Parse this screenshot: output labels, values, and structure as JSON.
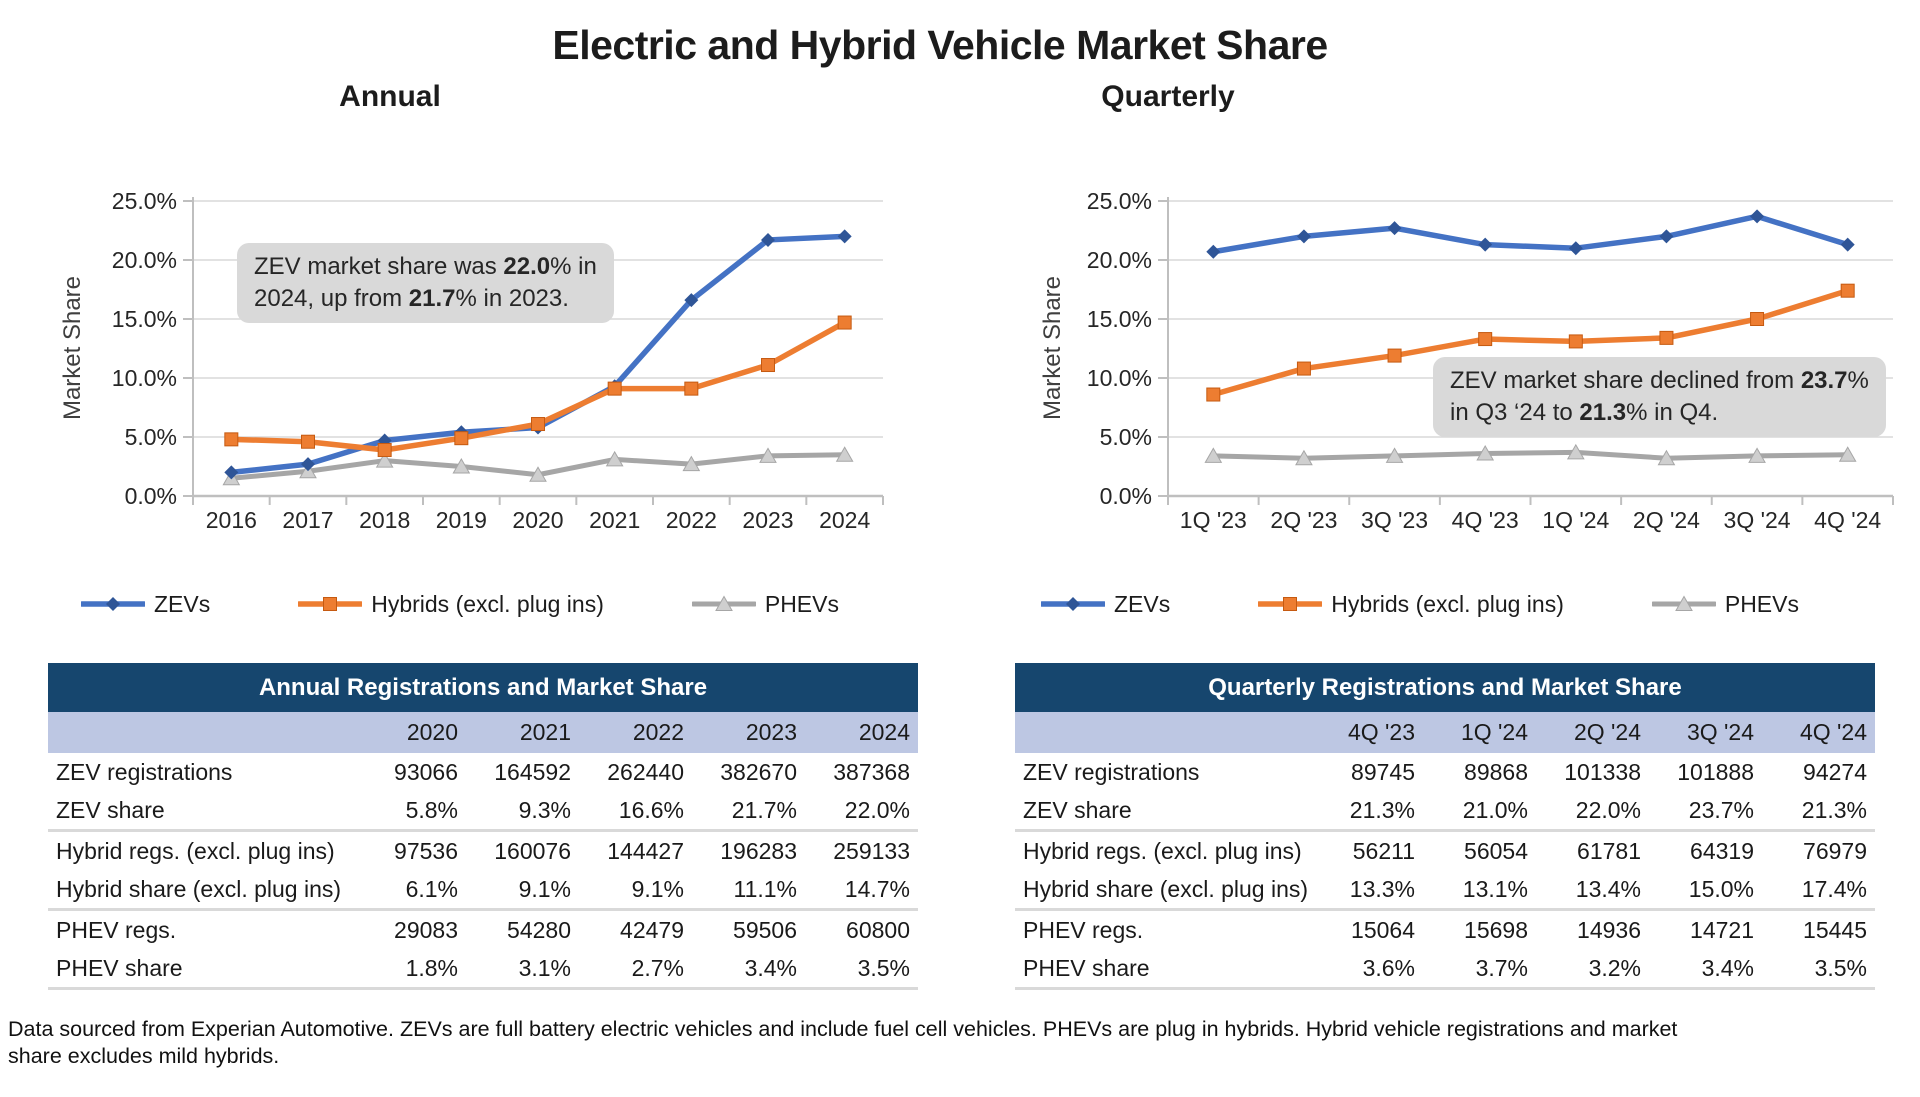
{
  "title": "Electric and Hybrid Vehicle Market Share",
  "colors": {
    "zev_line": "#4472C4",
    "zev_marker": "#2F5597",
    "hybrid_line": "#ED7D31",
    "hybrid_marker": "#ED7D31",
    "hybrid_marker_border": "#C55A11",
    "phev_line": "#A6A6A6",
    "phev_marker": "#CFCFCF",
    "phev_marker_border": "#A6A6A6",
    "gridline": "#D9D9D9",
    "axis": "#BFBFBF",
    "table_header_bg": "#16466E",
    "table_subheader_bg": "#BDC7E3",
    "annotation_bg": "#D9D9D9"
  },
  "chart_data": [
    {
      "type": "line",
      "heading": "Annual",
      "ylabel": "Market Share",
      "ylim": [
        0,
        25
      ],
      "ytick_labels": [
        "0.0%",
        "5.0%",
        "10.0%",
        "15.0%",
        "20.0%",
        "25.0%"
      ],
      "grid": true,
      "legend_position": "bottom",
      "categories": [
        "2016",
        "2017",
        "2018",
        "2019",
        "2020",
        "2021",
        "2022",
        "2023",
        "2024"
      ],
      "series": [
        {
          "name": "ZEVs",
          "values": [
            2.0,
            2.7,
            4.7,
            5.4,
            5.8,
            9.3,
            16.6,
            21.7,
            22.0
          ]
        },
        {
          "name": "Hybrids (excl. plug ins)",
          "values": [
            4.8,
            4.6,
            3.9,
            4.9,
            6.1,
            9.1,
            9.1,
            11.1,
            14.7
          ]
        },
        {
          "name": "PHEVs",
          "values": [
            1.5,
            2.1,
            3.0,
            2.5,
            1.8,
            3.1,
            2.7,
            3.4,
            3.5
          ]
        }
      ],
      "annotation": {
        "lines": [
          [
            {
              "t": "ZEV market share was "
            },
            {
              "t": "22.0",
              "b": true
            },
            {
              "t": "% in"
            }
          ],
          [
            {
              "t": "2024, up from "
            },
            {
              "t": "21.7",
              "b": true
            },
            {
              "t": "% in 2023."
            }
          ]
        ]
      }
    },
    {
      "type": "line",
      "heading": "Quarterly",
      "ylabel": "Market Share",
      "ylim": [
        0,
        25
      ],
      "ytick_labels": [
        "0.0%",
        "5.0%",
        "10.0%",
        "15.0%",
        "20.0%",
        "25.0%"
      ],
      "grid": true,
      "legend_position": "bottom",
      "categories": [
        "1Q '23",
        "2Q '23",
        "3Q '23",
        "4Q '23",
        "1Q '24",
        "2Q '24",
        "3Q '24",
        "4Q '24"
      ],
      "series": [
        {
          "name": "ZEVs",
          "values": [
            20.7,
            22.0,
            22.7,
            21.3,
            21.0,
            22.0,
            23.7,
            21.3
          ]
        },
        {
          "name": "Hybrids (excl. plug ins)",
          "values": [
            8.6,
            10.8,
            11.9,
            13.3,
            13.1,
            13.4,
            15.0,
            17.4
          ]
        },
        {
          "name": "PHEVs",
          "values": [
            3.4,
            3.2,
            3.4,
            3.6,
            3.7,
            3.2,
            3.4,
            3.5
          ]
        }
      ],
      "annotation": {
        "lines": [
          [
            {
              "t": "ZEV market share declined from "
            },
            {
              "t": "23.7",
              "b": true
            },
            {
              "t": "%"
            }
          ],
          [
            {
              "t": "in Q3 ‘24 to "
            },
            {
              "t": "21.3",
              "b": true
            },
            {
              "t": "% in Q4."
            }
          ]
        ]
      }
    }
  ],
  "tables": [
    {
      "title": "Annual Registrations and Market Share",
      "columns": [
        "",
        "2020",
        "2021",
        "2022",
        "2023",
        "2024"
      ],
      "rows": [
        {
          "label": "ZEV registrations",
          "values": [
            "93066",
            "164592",
            "262440",
            "382670",
            "387368"
          ],
          "separator_after": false
        },
        {
          "label": "ZEV share",
          "values": [
            "5.8%",
            "9.3%",
            "16.6%",
            "21.7%",
            "22.0%"
          ],
          "separator_after": true
        },
        {
          "label": "Hybrid regs. (excl. plug ins)",
          "values": [
            "97536",
            "160076",
            "144427",
            "196283",
            "259133"
          ],
          "separator_after": false
        },
        {
          "label": "Hybrid share (excl. plug ins)",
          "values": [
            "6.1%",
            "9.1%",
            "9.1%",
            "11.1%",
            "14.7%"
          ],
          "separator_after": true
        },
        {
          "label": "PHEV regs.",
          "values": [
            "29083",
            "54280",
            "42479",
            "59506",
            "60800"
          ],
          "separator_after": false
        },
        {
          "label": "PHEV share",
          "values": [
            "1.8%",
            "3.1%",
            "2.7%",
            "3.4%",
            "3.5%"
          ],
          "separator_after": true
        }
      ]
    },
    {
      "title": "Quarterly Registrations and Market Share",
      "columns": [
        "",
        "4Q '23",
        "1Q '24",
        "2Q '24",
        "3Q '24",
        "4Q '24"
      ],
      "rows": [
        {
          "label": "ZEV registrations",
          "values": [
            "89745",
            "89868",
            "101338",
            "101888",
            "94274"
          ],
          "separator_after": false
        },
        {
          "label": "ZEV share",
          "values": [
            "21.3%",
            "21.0%",
            "22.0%",
            "23.7%",
            "21.3%"
          ],
          "separator_after": true
        },
        {
          "label": "Hybrid regs. (excl. plug ins)",
          "values": [
            "56211",
            "56054",
            "61781",
            "64319",
            "76979"
          ],
          "separator_after": false
        },
        {
          "label": "Hybrid share (excl. plug ins)",
          "values": [
            "13.3%",
            "13.1%",
            "13.4%",
            "15.0%",
            "17.4%"
          ],
          "separator_after": true
        },
        {
          "label": "PHEV regs.",
          "values": [
            "15064",
            "15698",
            "14936",
            "14721",
            "15445"
          ],
          "separator_after": false
        },
        {
          "label": "PHEV share",
          "values": [
            "3.6%",
            "3.7%",
            "3.2%",
            "3.4%",
            "3.5%"
          ],
          "separator_after": true
        }
      ]
    }
  ],
  "footnote": {
    "lines": [
      "Data sourced from Experian Automotive. ZEVs are full battery electric vehicles and include fuel cell vehicles. PHEVs are plug in hybrids. Hybrid vehicle registrations and market",
      "share excludes mild hybrids."
    ]
  }
}
